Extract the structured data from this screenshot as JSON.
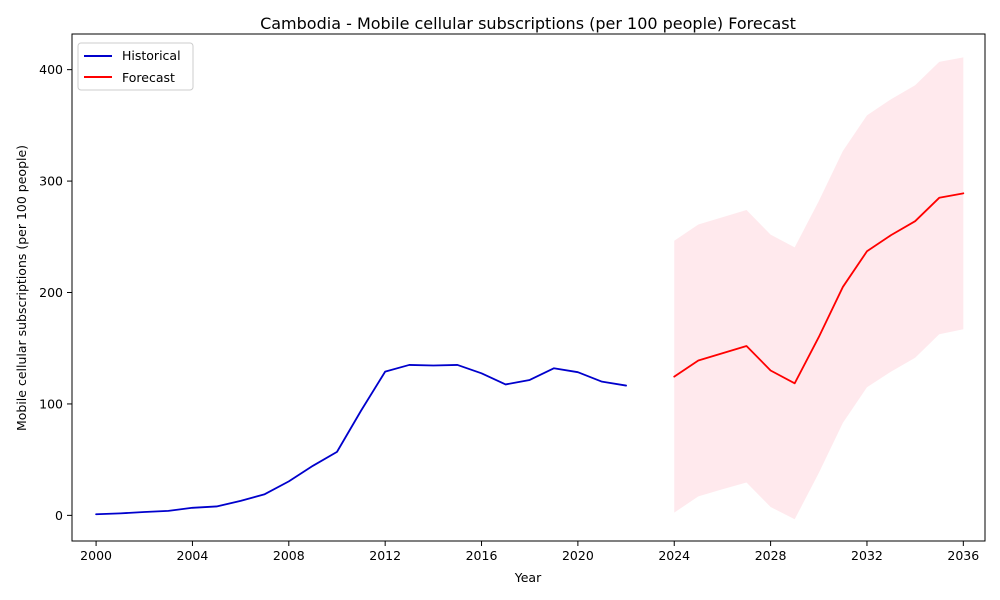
{
  "chart_data": {
    "type": "line",
    "title": "Cambodia - Mobile cellular subscriptions (per 100 people) Forecast",
    "xlabel": "Year",
    "ylabel": "Mobile cellular subscriptions (per 100 people)",
    "xlim": [
      1999.0,
      2036.9
    ],
    "ylim": [
      -23,
      432
    ],
    "xticks": [
      2000,
      2004,
      2008,
      2012,
      2016,
      2020,
      2024,
      2028,
      2032,
      2036
    ],
    "yticks": [
      0,
      100,
      200,
      300,
      400
    ],
    "grid": false,
    "legend_position": "top-left",
    "series": [
      {
        "name": "Historical",
        "color": "#0000cc",
        "x": [
          2000,
          2001,
          2002,
          2003,
          2004,
          2005,
          2006,
          2007,
          2008,
          2009,
          2010,
          2011,
          2012,
          2013,
          2014,
          2015,
          2016,
          2017,
          2018,
          2019,
          2020,
          2021,
          2022
        ],
        "y": [
          1,
          1.8,
          3,
          4,
          6.8,
          8,
          13,
          19,
          30.5,
          44.5,
          57,
          94,
          129,
          135,
          134.5,
          135,
          127.5,
          117.5,
          121.5,
          132,
          128.5,
          120,
          116.5
        ]
      },
      {
        "name": "Forecast",
        "color": "#ff0000",
        "x": [
          2024,
          2025,
          2026,
          2027,
          2028,
          2029,
          2030,
          2031,
          2032,
          2033,
          2034,
          2035,
          2036
        ],
        "y": [
          124.5,
          139,
          145.5,
          152,
          130,
          118.5,
          160,
          205,
          237,
          251.5,
          264,
          285,
          289
        ]
      }
    ],
    "confidence_band": {
      "series": "Forecast",
      "color": "#ffc0cb",
      "opacity": 0.35,
      "x": [
        2024,
        2025,
        2026,
        2027,
        2028,
        2029,
        2030,
        2031,
        2032,
        2033,
        2034,
        2035,
        2036
      ],
      "lower": [
        2.5,
        17,
        23.5,
        29.5,
        7.5,
        -3.5,
        38,
        83,
        115,
        129,
        141.5,
        162.5,
        167
      ],
      "upper": [
        246.5,
        261,
        267.5,
        274,
        252,
        240.5,
        282,
        327,
        359,
        373.5,
        386,
        407,
        411
      ]
    }
  }
}
